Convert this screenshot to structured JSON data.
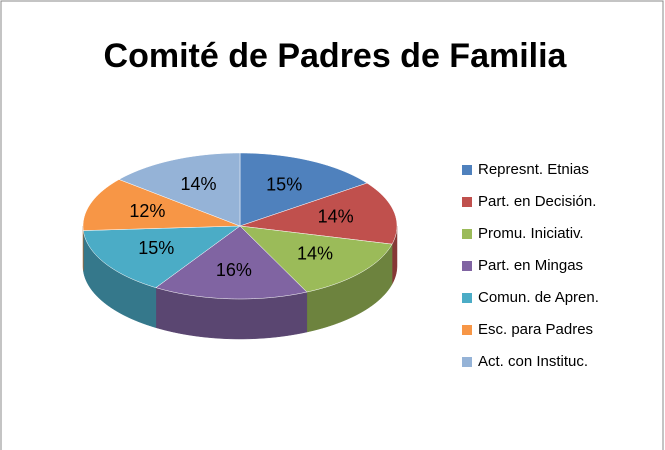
{
  "chart_data": {
    "type": "pie",
    "title": "Comité de Padres de Familia",
    "categories": [
      "Represnt. Etnias",
      "Part. en Decisión.",
      "Promu. Iniciativ.",
      "Part. en Mingas",
      "Comun. de Apren.",
      "Esc. para Padres",
      "Act. con Instituc."
    ],
    "values": [
      15,
      14,
      14,
      16,
      15,
      12,
      14
    ],
    "value_labels": [
      "15%",
      "14%",
      "14%",
      "16%",
      "15%",
      "12%",
      "14%"
    ],
    "colors": [
      "#4f81bd",
      "#c0504d",
      "#9bbb59",
      "#8064a2",
      "#4bacc6",
      "#f79646",
      "#95b3d7"
    ],
    "legend": "right"
  }
}
